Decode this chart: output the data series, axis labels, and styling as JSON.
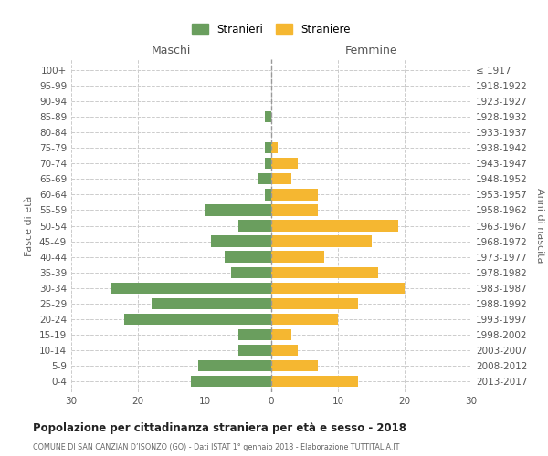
{
  "age_groups": [
    "100+",
    "95-99",
    "90-94",
    "85-89",
    "80-84",
    "75-79",
    "70-74",
    "65-69",
    "60-64",
    "55-59",
    "50-54",
    "45-49",
    "40-44",
    "35-39",
    "30-34",
    "25-29",
    "20-24",
    "15-19",
    "10-14",
    "5-9",
    "0-4"
  ],
  "birth_years": [
    "≤ 1917",
    "1918-1922",
    "1923-1927",
    "1928-1932",
    "1933-1937",
    "1938-1942",
    "1943-1947",
    "1948-1952",
    "1953-1957",
    "1958-1962",
    "1963-1967",
    "1968-1972",
    "1973-1977",
    "1978-1982",
    "1983-1987",
    "1988-1992",
    "1993-1997",
    "1998-2002",
    "2003-2007",
    "2008-2012",
    "2013-2017"
  ],
  "maschi": [
    0,
    0,
    0,
    1,
    0,
    1,
    1,
    2,
    1,
    10,
    5,
    9,
    7,
    6,
    24,
    18,
    22,
    5,
    5,
    11,
    12
  ],
  "femmine": [
    0,
    0,
    0,
    0,
    0,
    1,
    4,
    3,
    7,
    7,
    19,
    15,
    8,
    16,
    20,
    13,
    10,
    3,
    4,
    7,
    13
  ],
  "male_color": "#6a9e5e",
  "female_color": "#f5b731",
  "background_color": "#ffffff",
  "grid_color": "#cccccc",
  "title": "Popolazione per cittadinanza straniera per età e sesso - 2018",
  "subtitle": "COMUNE DI SAN CANZIAN D’ISONZO (GO) - Dati ISTAT 1° gennaio 2018 - Elaborazione TUTTITALIA.IT",
  "xlabel_left": "Maschi",
  "xlabel_right": "Femmine",
  "ylabel_left": "Fasce di età",
  "ylabel_right": "Anni di nascita",
  "legend_male": "Stranieri",
  "legend_female": "Straniere",
  "xlim": 30
}
